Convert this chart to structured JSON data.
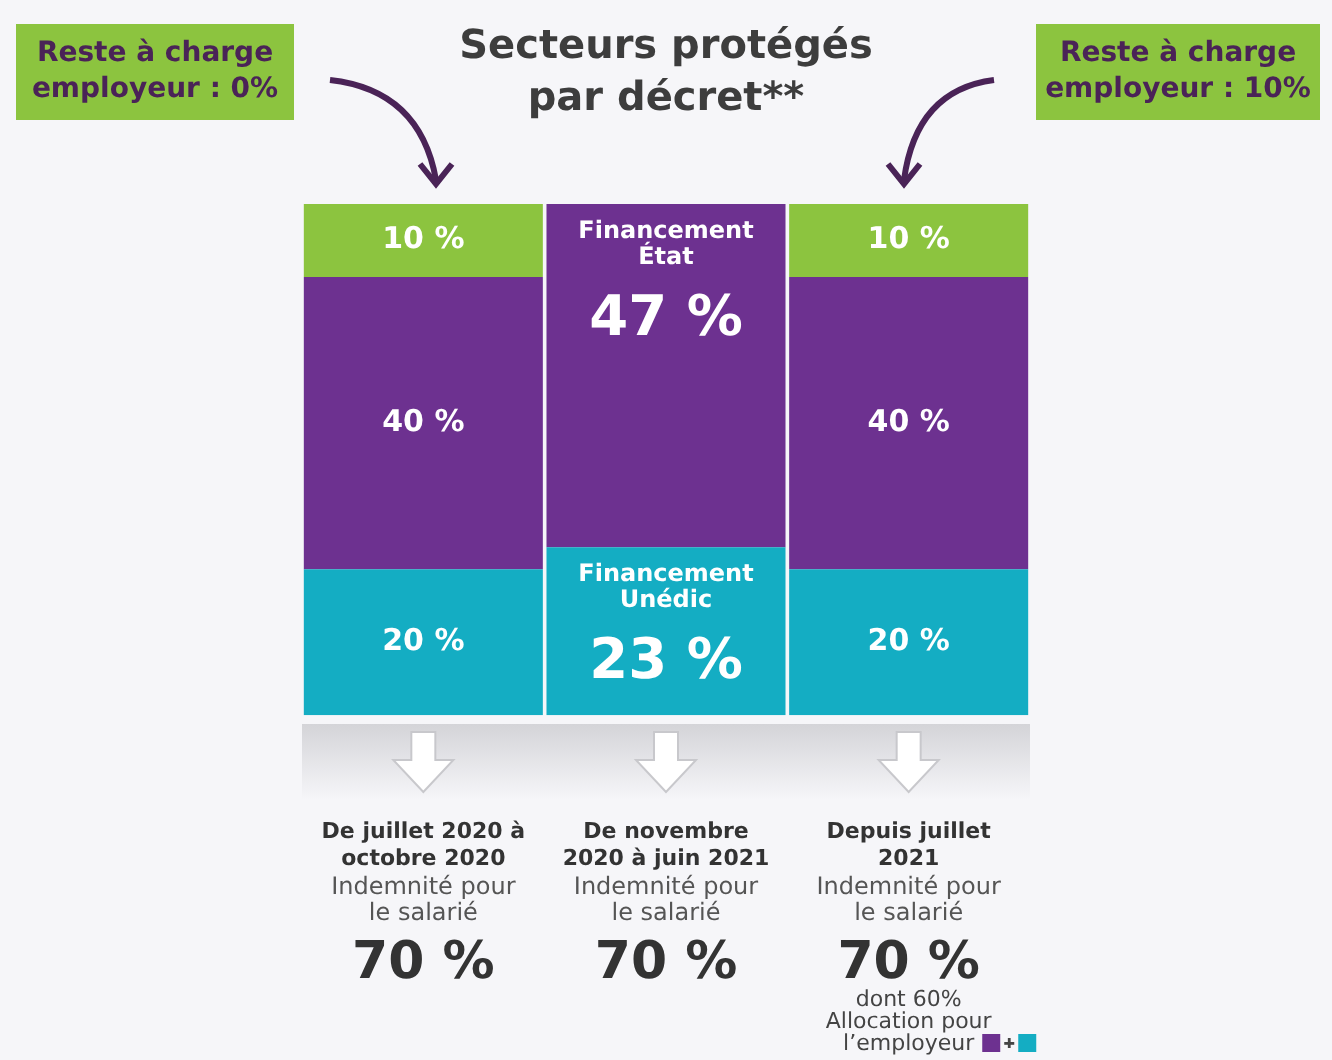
{
  "chart_data": {
    "type": "bar",
    "stacked": true,
    "title": "Secteurs protégés par décret**",
    "categories": [
      "De juillet 2020 à octobre 2020",
      "De novembre 2020 à juin 2021",
      "Depuis juillet 2021"
    ],
    "series": [
      {
        "name": "Financement Unédic",
        "color": "#14adc3",
        "values": [
          20,
          23,
          20
        ],
        "value_labels": [
          "20 %",
          "23 %",
          "20 %"
        ]
      },
      {
        "name": "Financement État",
        "color": "#6d3190",
        "values": [
          40,
          47,
          40
        ],
        "value_labels": [
          "40 %",
          "47 %",
          "40 %"
        ]
      },
      {
        "color": "#8cc43f",
        "values": [
          10,
          0,
          10
        ],
        "value_labels": [
          "10 %",
          null,
          "10 %"
        ]
      }
    ],
    "annotations": [
      "Reste à charge employeur : 0%",
      "Reste à charge employeur : 10%",
      "Indemnité pour le salarié",
      "70 %",
      "Indemnité pour le salarié",
      "70 %",
      "Indemnité pour le salarié",
      "70 %",
      "dont 60% Allocation pour l’employeur"
    ],
    "grid": false,
    "legend": false
  }
}
